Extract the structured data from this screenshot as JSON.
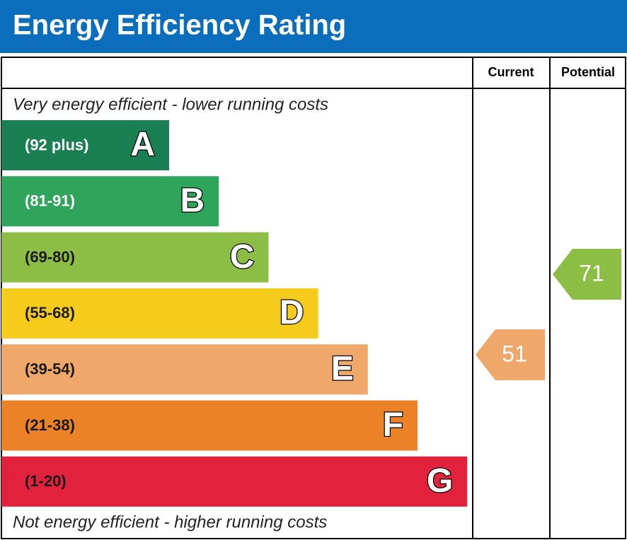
{
  "title": "Energy Efficiency Rating",
  "columns": [
    "Current",
    "Potential"
  ],
  "top_note": "Very energy efficient - lower running costs",
  "bottom_note": "Not energy efficient - higher running costs",
  "bands": [
    {
      "range": "(92 plus)",
      "letter": "A",
      "color": "#1a8054",
      "text_color": "#ffffff"
    },
    {
      "range": "(81-91)",
      "letter": "B",
      "color": "#2ea55a",
      "text_color": "#ffffff"
    },
    {
      "range": "(69-80)",
      "letter": "C",
      "color": "#8cbd44",
      "text_color": "#1a1a1a"
    },
    {
      "range": "(55-68)",
      "letter": "D",
      "color": "#f5cc1c",
      "text_color": "#1a1a1a"
    },
    {
      "range": "(39-54)",
      "letter": "E",
      "color": "#f0a86a",
      "text_color": "#1a1a1a"
    },
    {
      "range": "(21-38)",
      "letter": "F",
      "color": "#ec8228",
      "text_color": "#1a1a1a"
    },
    {
      "range": "(1-20)",
      "letter": "G",
      "color": "#e2223c",
      "text_color": "#1a1a1a"
    }
  ],
  "current": {
    "value": 51,
    "color": "#f0a86a"
  },
  "potential": {
    "value": 71,
    "color": "#8cbd44"
  }
}
